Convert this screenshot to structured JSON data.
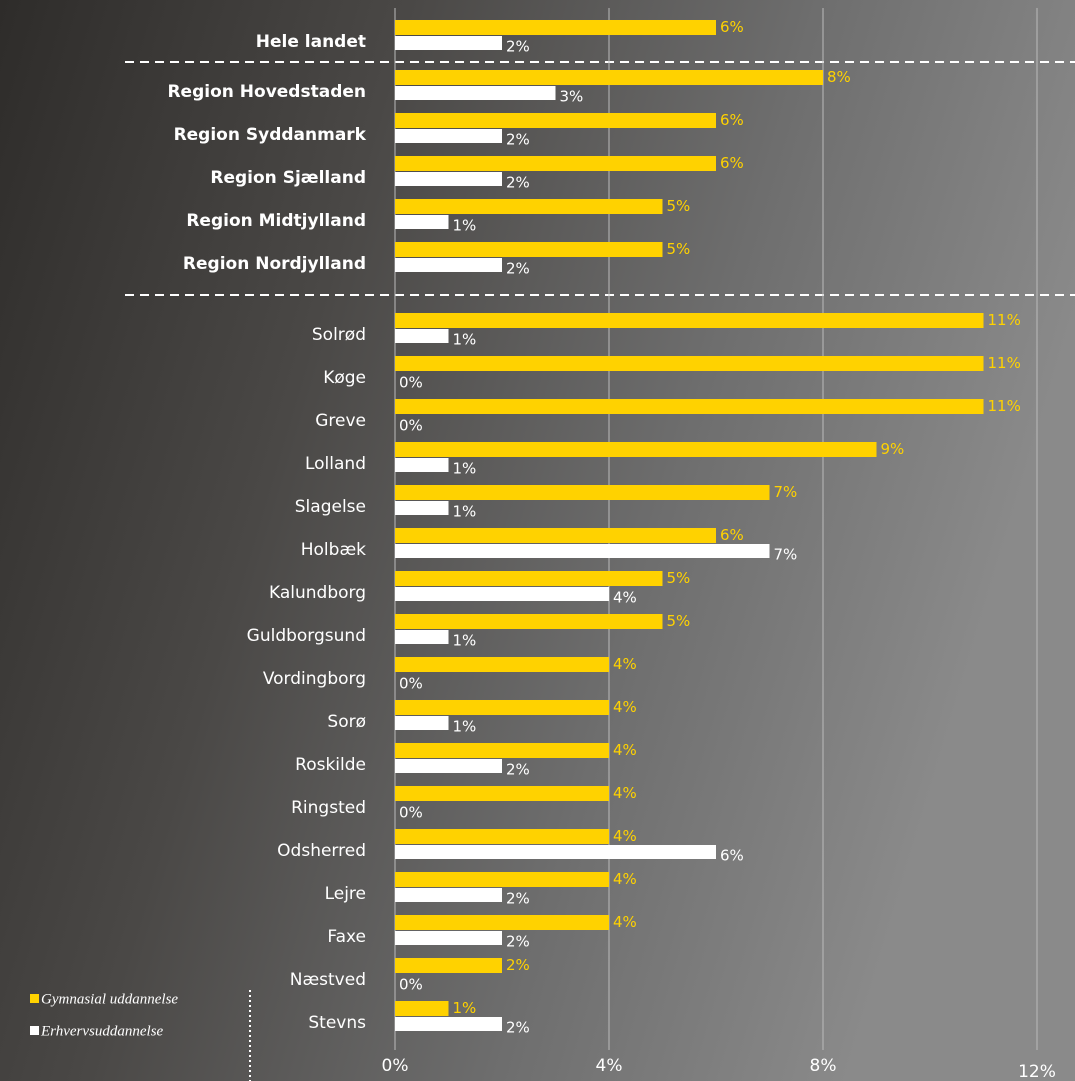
{
  "chart_data": {
    "type": "bar",
    "orientation": "horizontal",
    "categories": [
      "Hele landet",
      "Region Hovedstaden",
      "Region Syddanmark",
      "Region Sjælland",
      "Region Midtjylland",
      "Region Nordjylland",
      "Solrød",
      "Køge",
      "Greve",
      "Lolland",
      "Slagelse",
      "Holbæk",
      "Kalundborg",
      "Guldborgsund",
      "Vordingborg",
      "Sorø",
      "Roskilde",
      "Ringsted",
      "Odsherred",
      "Lejre",
      "Faxe",
      "Næstved",
      "Stevns"
    ],
    "series": [
      {
        "name": "Gymnasial uddannelse",
        "color": "#FFD200",
        "values": [
          6,
          8,
          6,
          6,
          5,
          5,
          11,
          11,
          11,
          9,
          7,
          6,
          5,
          5,
          4,
          4,
          4,
          4,
          4,
          4,
          4,
          2,
          1
        ],
        "value_labels": [
          "6%",
          "8%",
          "6%",
          "6%",
          "5%",
          "5%",
          "11%",
          "11%",
          "11%",
          "9%",
          "7%",
          "6%",
          "5%",
          "5%",
          "4%",
          "4%",
          "4%",
          "4%",
          "4%",
          "4%",
          "4%",
          "2%",
          "1%"
        ]
      },
      {
        "name": "Erhvervsuddannelse",
        "color": "#FFFFFF",
        "values": [
          2,
          3,
          2,
          2,
          1,
          2,
          1,
          0,
          0,
          1,
          1,
          7,
          4,
          1,
          0,
          1,
          2,
          0,
          6,
          2,
          2,
          0,
          2
        ],
        "value_labels": [
          "2%",
          "3%",
          "2%",
          "2%",
          "1%",
          "2%",
          "1%",
          "0%",
          "0%",
          "1%",
          "1%",
          "7%",
          "4%",
          "1%",
          "0%",
          "1%",
          "2%",
          "0%",
          "6%",
          "2%",
          "2%",
          "0%",
          "2%"
        ]
      }
    ],
    "xlim": [
      0,
      12
    ],
    "xticks": [
      {
        "value": 0,
        "label": "0%"
      },
      {
        "value": 4,
        "label": "4%"
      },
      {
        "value": 8,
        "label": "8%"
      },
      {
        "value": 12,
        "label": "12%"
      }
    ],
    "grid": true,
    "legend": "bottom-left"
  }
}
